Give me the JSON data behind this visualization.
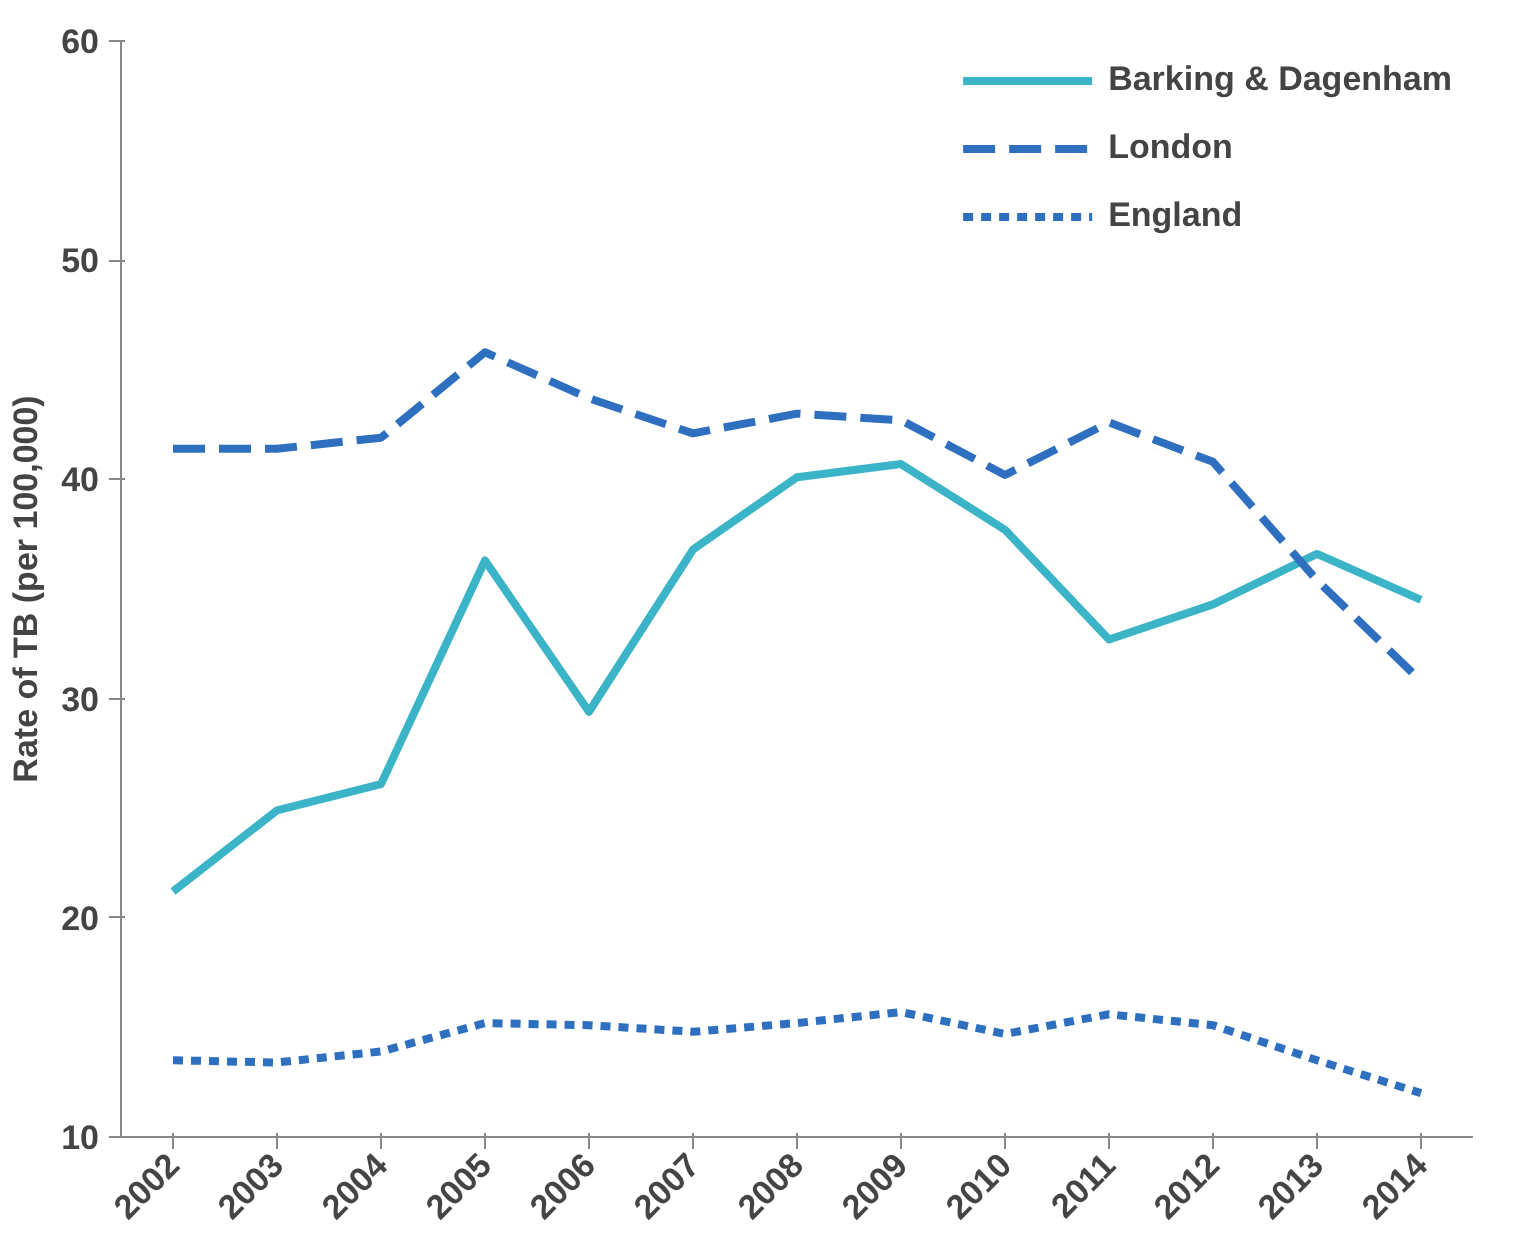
{
  "chart_data": {
    "type": "line",
    "ylabel": "Rate of TB (per 100,000)",
    "categories": [
      "2002",
      "2003",
      "2004",
      "2005",
      "2006",
      "2007",
      "2008",
      "2009",
      "2010",
      "2011",
      "2012",
      "2013",
      "2014"
    ],
    "series": [
      {
        "name": "Barking & Dagenham",
        "color": "#3cb4c8",
        "line_style": "solid",
        "values": [
          21.2,
          24.9,
          26.1,
          36.3,
          29.4,
          36.8,
          40.1,
          40.7,
          37.7,
          32.7,
          34.3,
          36.6,
          34.5
        ]
      },
      {
        "name": "London",
        "color": "#2e6fbf",
        "line_style": "dashed",
        "values": [
          41.4,
          41.4,
          41.9,
          45.8,
          43.7,
          42.1,
          43.0,
          42.7,
          40.2,
          42.6,
          40.8,
          35.4,
          30.8
        ]
      },
      {
        "name": "England",
        "color": "#2e6fbf",
        "line_style": "dotted",
        "values": [
          13.5,
          13.4,
          13.9,
          15.2,
          15.1,
          14.8,
          15.2,
          15.7,
          14.7,
          15.6,
          15.1,
          13.5,
          12.0
        ]
      }
    ],
    "ylim": [
      10,
      60
    ],
    "yticks": [
      10,
      20,
      30,
      40,
      50,
      60
    ],
    "grid": false,
    "legend": "top right",
    "marker": "none"
  }
}
